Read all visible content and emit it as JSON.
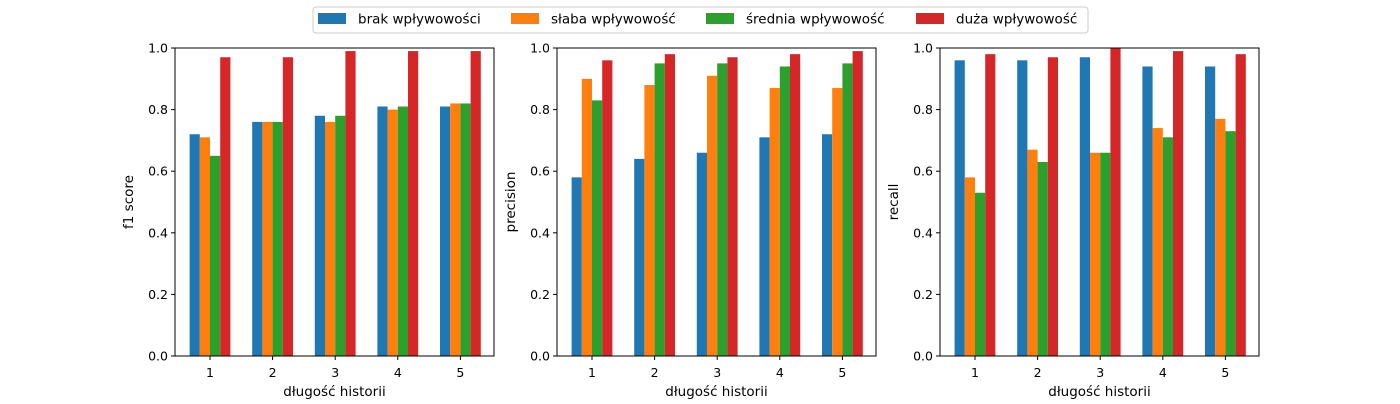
{
  "legend": {
    "entries": [
      {
        "label": "brak wpływowości",
        "color": "#1f77b4"
      },
      {
        "label": "słaba wpływowość",
        "color": "#ff7f0e"
      },
      {
        "label": "średnia wpływowość",
        "color": "#2ca02c"
      },
      {
        "label": "duża wpływowość",
        "color": "#d62728"
      }
    ],
    "placement": "top-center"
  },
  "chart_data": [
    {
      "type": "bar",
      "xlabel": "długość historii",
      "ylabel": "f1 score",
      "categories": [
        "1",
        "2",
        "3",
        "4",
        "5"
      ],
      "ylim": [
        0,
        1.0
      ],
      "yticks": [
        "0.0",
        "0.2",
        "0.4",
        "0.6",
        "0.8",
        "1.0"
      ],
      "grid": false,
      "series": [
        {
          "name": "brak wpływowości",
          "values": [
            0.72,
            0.76,
            0.78,
            0.81,
            0.81
          ]
        },
        {
          "name": "słaba wpływowość",
          "values": [
            0.71,
            0.76,
            0.76,
            0.8,
            0.82
          ]
        },
        {
          "name": "średnia wpływowość",
          "values": [
            0.65,
            0.76,
            0.78,
            0.81,
            0.82
          ]
        },
        {
          "name": "duża wpływowość",
          "values": [
            0.97,
            0.97,
            0.99,
            0.99,
            0.99
          ]
        }
      ]
    },
    {
      "type": "bar",
      "xlabel": "długość historii",
      "ylabel": "precision",
      "categories": [
        "1",
        "2",
        "3",
        "4",
        "5"
      ],
      "ylim": [
        0,
        1.0
      ],
      "yticks": [
        "0.0",
        "0.2",
        "0.4",
        "0.6",
        "0.8",
        "1.0"
      ],
      "grid": false,
      "series": [
        {
          "name": "brak wpływowości",
          "values": [
            0.58,
            0.64,
            0.66,
            0.71,
            0.72
          ]
        },
        {
          "name": "słaba wpływowość",
          "values": [
            0.9,
            0.88,
            0.91,
            0.87,
            0.87
          ]
        },
        {
          "name": "średnia wpływowość",
          "values": [
            0.83,
            0.95,
            0.95,
            0.94,
            0.95
          ]
        },
        {
          "name": "duża wpływowość",
          "values": [
            0.96,
            0.98,
            0.97,
            0.98,
            0.99
          ]
        }
      ]
    },
    {
      "type": "bar",
      "xlabel": "długość historii",
      "ylabel": "recall",
      "categories": [
        "1",
        "2",
        "3",
        "4",
        "5"
      ],
      "ylim": [
        0,
        1.0
      ],
      "yticks": [
        "0.0",
        "0.2",
        "0.4",
        "0.6",
        "0.8",
        "1.0"
      ],
      "grid": false,
      "series": [
        {
          "name": "brak wpływowości",
          "values": [
            0.96,
            0.96,
            0.97,
            0.94,
            0.94
          ]
        },
        {
          "name": "słaba wpływowość",
          "values": [
            0.58,
            0.67,
            0.66,
            0.74,
            0.77
          ]
        },
        {
          "name": "średnia wpływowość",
          "values": [
            0.53,
            0.63,
            0.66,
            0.71,
            0.73
          ]
        },
        {
          "name": "duża wpływowość",
          "values": [
            0.98,
            0.97,
            1.0,
            0.99,
            0.98
          ]
        }
      ]
    }
  ]
}
